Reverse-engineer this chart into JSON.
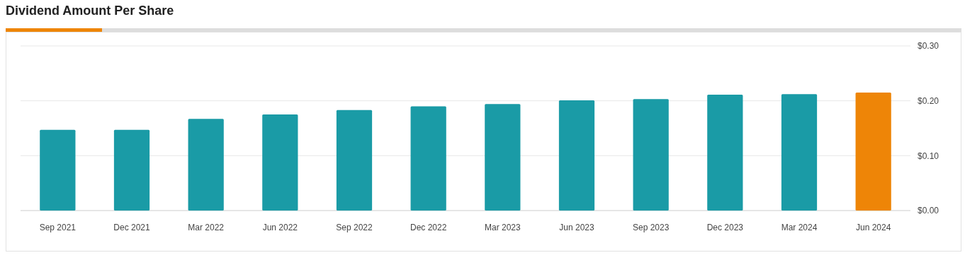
{
  "chart_data": {
    "type": "bar",
    "title": "Dividend Amount Per Share",
    "categories": [
      "Sep 2021",
      "Dec 2021",
      "Mar 2022",
      "Jun 2022",
      "Sep 2022",
      "Dec 2022",
      "Mar 2023",
      "Jun 2023",
      "Sep 2023",
      "Dec 2023",
      "Mar 2024",
      "Jun 2024"
    ],
    "values": [
      0.147,
      0.147,
      0.167,
      0.175,
      0.183,
      0.19,
      0.194,
      0.201,
      0.203,
      0.211,
      0.212,
      0.215
    ],
    "colors": [
      "#1a9ba6",
      "#1a9ba6",
      "#1a9ba6",
      "#1a9ba6",
      "#1a9ba6",
      "#1a9ba6",
      "#1a9ba6",
      "#1a9ba6",
      "#1a9ba6",
      "#1a9ba6",
      "#1a9ba6",
      "#ee8507"
    ],
    "ylim": [
      0,
      0.3
    ],
    "yticks": [
      {
        "value": 0,
        "label": "$0.00"
      },
      {
        "value": 0.1,
        "label": "$0.10"
      },
      {
        "value": 0.2,
        "label": "$0.20"
      },
      {
        "value": 0.3,
        "label": "$0.30"
      }
    ],
    "grid": "y"
  }
}
